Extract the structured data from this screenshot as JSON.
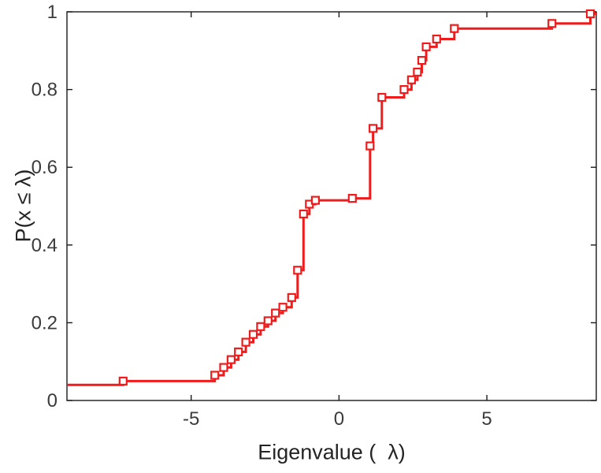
{
  "figure": {
    "background": "#ffffff"
  },
  "chart_data": {
    "type": "line",
    "subtype": "empirical-cdf-stairs",
    "title": "",
    "xlabel": "Eigenvalue (  λ)",
    "ylabel": "P(x ≤ λ)",
    "xlim": [
      -9.2,
      8.7
    ],
    "ylim": [
      0,
      1
    ],
    "xticks": [
      -5,
      0,
      5
    ],
    "xtick_labels": [
      "-5",
      "0",
      "5"
    ],
    "yticks": [
      0,
      0.2,
      0.4,
      0.6,
      0.8,
      1
    ],
    "ytick_labels": [
      "0",
      "0.2",
      "0.4",
      "0.6",
      "0.8",
      "1"
    ],
    "grid": false,
    "legend_position": "none",
    "line_color": "#ee1c1c",
    "line_width": 3,
    "marker": "open-square",
    "marker_fill": "#ffffff",
    "axis_color": "#1a1a1a",
    "tick_label_color": "#3b3b3b",
    "start_y": 0.04,
    "points": [
      {
        "x": -7.3,
        "y": 0.05
      },
      {
        "x": -4.2,
        "y": 0.065
      },
      {
        "x": -3.9,
        "y": 0.085
      },
      {
        "x": -3.65,
        "y": 0.105
      },
      {
        "x": -3.4,
        "y": 0.125
      },
      {
        "x": -3.15,
        "y": 0.15
      },
      {
        "x": -2.9,
        "y": 0.17
      },
      {
        "x": -2.65,
        "y": 0.19
      },
      {
        "x": -2.4,
        "y": 0.205
      },
      {
        "x": -2.15,
        "y": 0.225
      },
      {
        "x": -1.9,
        "y": 0.24
      },
      {
        "x": -1.6,
        "y": 0.265
      },
      {
        "x": -1.4,
        "y": 0.335
      },
      {
        "x": -1.2,
        "y": 0.48
      },
      {
        "x": -1.0,
        "y": 0.505
      },
      {
        "x": -0.8,
        "y": 0.515
      },
      {
        "x": 0.45,
        "y": 0.52
      },
      {
        "x": 1.05,
        "y": 0.655
      },
      {
        "x": 1.15,
        "y": 0.7
      },
      {
        "x": 1.45,
        "y": 0.78
      },
      {
        "x": 2.2,
        "y": 0.8
      },
      {
        "x": 2.45,
        "y": 0.825
      },
      {
        "x": 2.65,
        "y": 0.845
      },
      {
        "x": 2.8,
        "y": 0.875
      },
      {
        "x": 2.95,
        "y": 0.91
      },
      {
        "x": 3.3,
        "y": 0.93
      },
      {
        "x": 3.9,
        "y": 0.957
      },
      {
        "x": 7.2,
        "y": 0.97
      },
      {
        "x": 8.5,
        "y": 0.995
      }
    ]
  }
}
